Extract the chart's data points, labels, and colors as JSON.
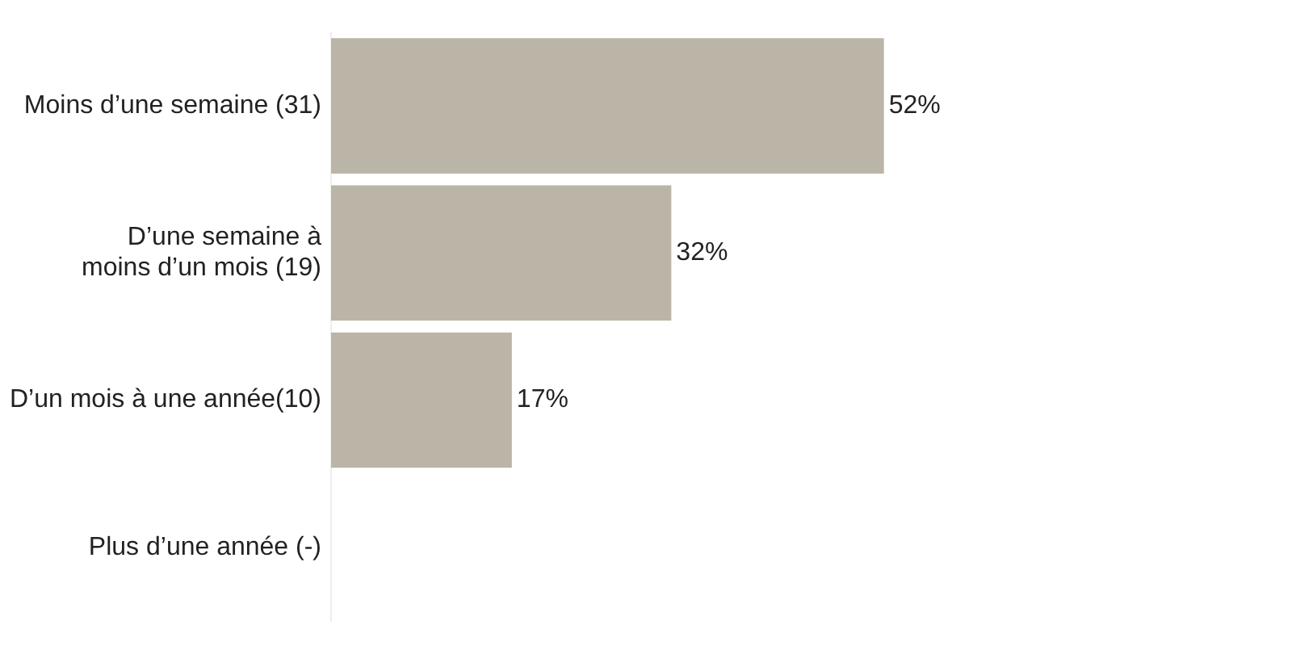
{
  "chart_data": {
    "type": "bar",
    "orientation": "horizontal",
    "categories": [
      "Moins d’une semaine (31)",
      "D’une semaine à\nmoins d’un mois (19)",
      "D’un mois à une année(10)",
      "Plus d’une année (-)"
    ],
    "values": [
      52,
      32,
      17,
      null
    ],
    "value_labels": [
      "52%",
      "32%",
      "17%",
      null
    ],
    "color": "#bbb5a8"
  }
}
